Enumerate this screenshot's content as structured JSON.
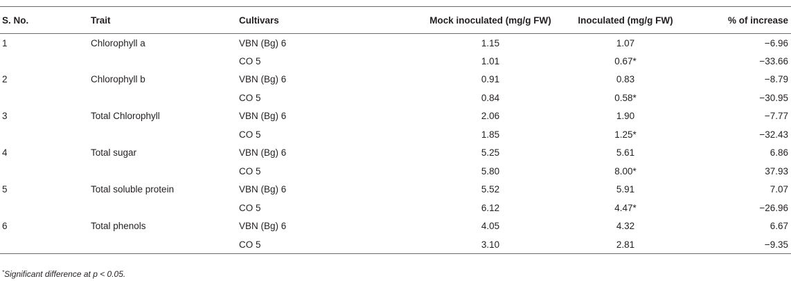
{
  "table": {
    "headers": [
      "S. No.",
      "Trait",
      "Cultivars",
      "Mock inoculated (mg/g FW)",
      "Inoculated (mg/g FW)",
      "% of increase"
    ],
    "rows": [
      {
        "sno": "1",
        "trait": "Chlorophyll a",
        "cultivar": "VBN (Bg) 6",
        "mock": "1.15",
        "inoculated": "1.07",
        "increase": "−6.96"
      },
      {
        "sno": "",
        "trait": "",
        "cultivar": "CO 5",
        "mock": "1.01",
        "inoculated": "0.67*",
        "increase": "−33.66"
      },
      {
        "sno": "2",
        "trait": "Chlorophyll b",
        "cultivar": "VBN (Bg) 6",
        "mock": "0.91",
        "inoculated": "0.83",
        "increase": "−8.79"
      },
      {
        "sno": "",
        "trait": "",
        "cultivar": "CO 5",
        "mock": "0.84",
        "inoculated": "0.58*",
        "increase": "−30.95"
      },
      {
        "sno": "3",
        "trait": "Total Chlorophyll",
        "cultivar": "VBN (Bg) 6",
        "mock": "2.06",
        "inoculated": "1.90",
        "increase": "−7.77"
      },
      {
        "sno": "",
        "trait": "",
        "cultivar": "CO 5",
        "mock": "1.85",
        "inoculated": "1.25*",
        "increase": "−32.43"
      },
      {
        "sno": "4",
        "trait": "Total sugar",
        "cultivar": "VBN (Bg) 6",
        "mock": "5.25",
        "inoculated": "5.61",
        "increase": "6.86"
      },
      {
        "sno": "",
        "trait": "",
        "cultivar": "CO 5",
        "mock": "5.80",
        "inoculated": "8.00*",
        "increase": "37.93"
      },
      {
        "sno": "5",
        "trait": "Total soluble protein",
        "cultivar": "VBN (Bg) 6",
        "mock": "5.52",
        "inoculated": "5.91",
        "increase": "7.07"
      },
      {
        "sno": "",
        "trait": "",
        "cultivar": "CO 5",
        "mock": "6.12",
        "inoculated": "4.47*",
        "increase": "−26.96"
      },
      {
        "sno": "6",
        "trait": "Total phenols",
        "cultivar": "VBN (Bg) 6",
        "mock": "4.05",
        "inoculated": "4.32",
        "increase": "6.67"
      },
      {
        "sno": "",
        "trait": "",
        "cultivar": "CO 5",
        "mock": "3.10",
        "inoculated": "2.81",
        "increase": "−9.35"
      }
    ]
  },
  "footnote": {
    "marker": "*",
    "text": "Significant difference at p < 0.05."
  }
}
